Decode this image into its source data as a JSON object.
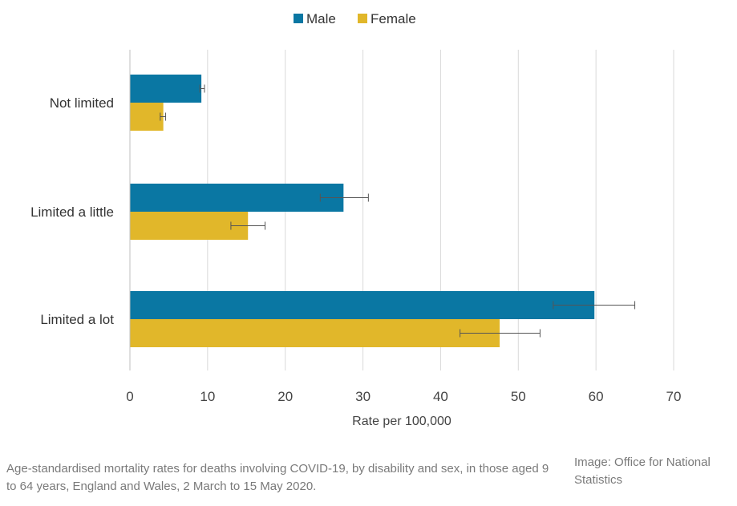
{
  "chart_data": {
    "type": "bar",
    "orientation": "horizontal",
    "categories": [
      "Not limited",
      "Limited a little",
      "Limited a lot"
    ],
    "series": [
      {
        "name": "Male",
        "color": "#0a77a3",
        "values": [
          9.2,
          27.5,
          59.8
        ],
        "error_low": [
          9.0,
          24.5,
          54.5
        ],
        "error_high": [
          9.6,
          30.7,
          65.0
        ]
      },
      {
        "name": "Female",
        "color": "#e1b72a",
        "values": [
          4.3,
          15.2,
          47.6
        ],
        "error_low": [
          3.9,
          13.0,
          42.5
        ],
        "error_high": [
          4.6,
          17.4,
          52.8
        ]
      }
    ],
    "xlabel": "Rate per 100,000",
    "ylabel": "",
    "xlim": [
      0,
      70
    ],
    "xticks": [
      0,
      10,
      20,
      30,
      40,
      50,
      60,
      70
    ],
    "grid": true,
    "legend": "top-center"
  },
  "caption": "Age-standardised mortality rates for deaths involving COVID-19, by disability and sex, in those aged 9 to 64 years, England and Wales, 2 March to 15 May 2020.",
  "credit": "Image: Office for National Statistics"
}
